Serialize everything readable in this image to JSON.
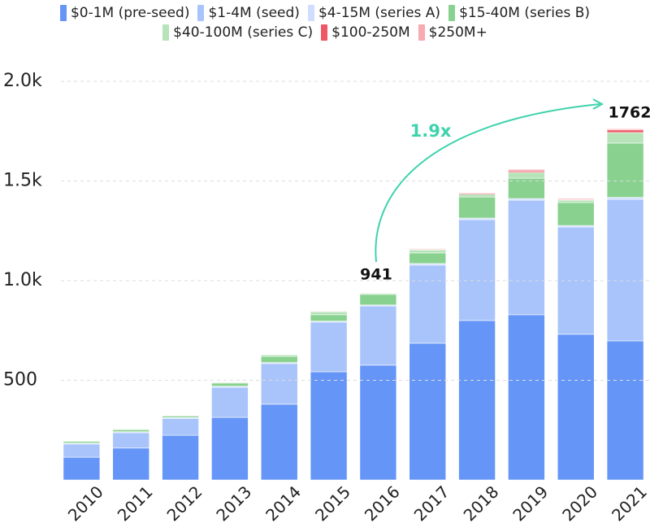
{
  "chart_data": {
    "type": "stacked_bar",
    "categories": [
      "2010",
      "2011",
      "2012",
      "2013",
      "2014",
      "2015",
      "2016",
      "2017",
      "2018",
      "2019",
      "2020",
      "2021"
    ],
    "series": [
      {
        "name": "$0-1M (pre-seed)",
        "color": "#6495f7",
        "values": [
          114,
          160,
          224,
          314,
          380,
          543,
          576,
          686,
          800,
          829,
          731,
          698
        ]
      },
      {
        "name": "$1-4M (seed)",
        "color": "#a9c4fb",
        "values": [
          66,
          77,
          85,
          151,
          204,
          249,
          297,
          392,
          506,
          575,
          538,
          710
        ]
      },
      {
        "name": "$4-15M (series A)",
        "color": "#cfdefe",
        "values": [
          5,
          5,
          4,
          5,
          5,
          5,
          5,
          8,
          8,
          8,
          8,
          10
        ]
      },
      {
        "name": "$15-40M (series B)",
        "color": "#88d18f",
        "values": [
          8,
          10,
          8,
          16,
          31,
          32,
          53,
          53,
          106,
          102,
          115,
          272
        ]
      },
      {
        "name": "$40-100M (series C)",
        "color": "#b7e3b9",
        "values": [
          3,
          3,
          3,
          4,
          8,
          15,
          6,
          15,
          14,
          29,
          12,
          53
        ]
      },
      {
        "name": "$100-250M",
        "color": "#ef5766",
        "values": [
          0,
          0,
          0,
          0,
          2,
          3,
          2,
          3,
          4,
          7,
          3,
          13
        ]
      },
      {
        "name": "$250M+",
        "color": "#f8aab0",
        "values": [
          0,
          0,
          0,
          0,
          0,
          2,
          2,
          4,
          4,
          8,
          5,
          6
        ]
      }
    ],
    "ylim": [
      0,
      2000
    ],
    "yticks": [
      500,
      {
        "value": 1000,
        "label": "1.0k"
      },
      {
        "value": 1500,
        "label": "1.5k"
      },
      {
        "value": 2000,
        "label": "2.0k"
      }
    ],
    "grid": true,
    "annotations": [
      {
        "text": "941"
      },
      {
        "text": "1762"
      },
      {
        "text": "1.9x"
      }
    ]
  }
}
